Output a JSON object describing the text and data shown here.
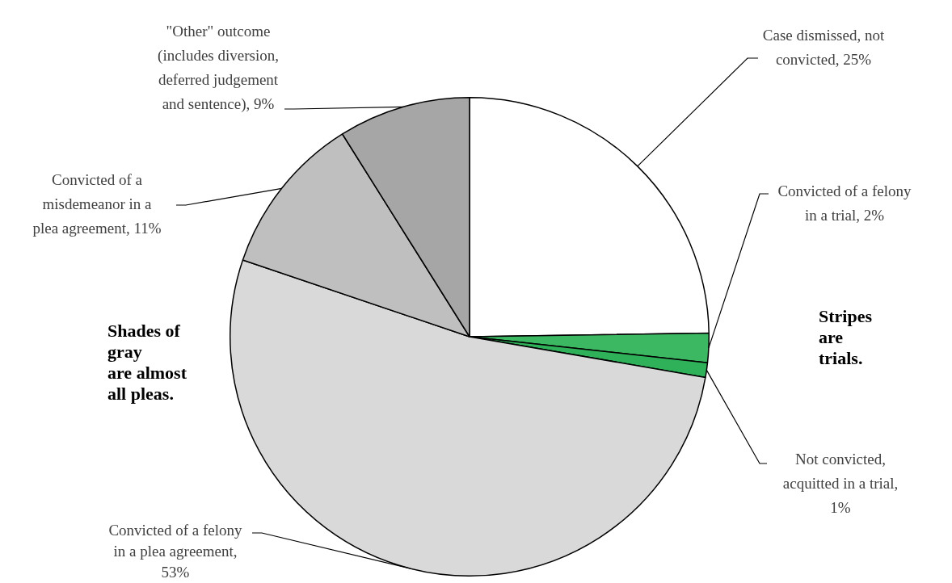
{
  "chart_data": {
    "type": "pie",
    "categories": [
      "Case dismissed, not convicted, 25%",
      "Convicted of a felony in a trial, 2%",
      "Not convicted, acquitted in a trial, 1%",
      "Convicted of a felony in a plea agreement, 53%",
      "Convicted of a misdemeanor in a plea agreement, 11%",
      "\"Other\" outcome (includes diversion, deferred judgement and sentence), 9%"
    ],
    "values": [
      25,
      2,
      1,
      53,
      11,
      9
    ],
    "colors": [
      "#ffffff",
      "#3cb862",
      "#2fb15a",
      "#d9d9d9",
      "#bfbfbf",
      "#a6a6a6"
    ],
    "annotations": [
      "Shades of gray are almost all pleas.",
      "Stripes are trials."
    ],
    "legend": false
  }
}
